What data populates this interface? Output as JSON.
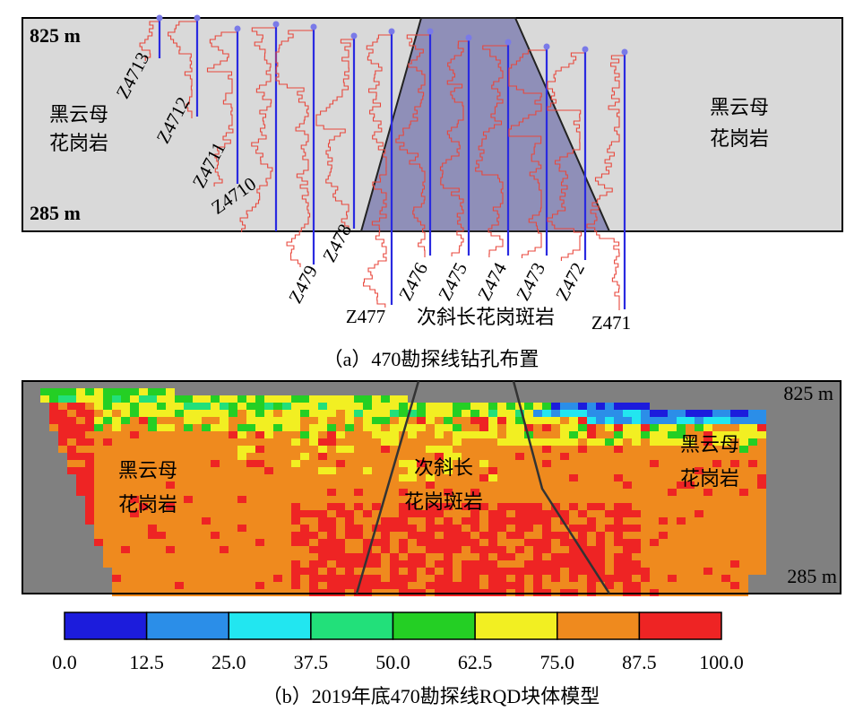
{
  "panel_a": {
    "depth_top": "825 m",
    "depth_bottom": "285 m",
    "host_rock_left": [
      "黑云母",
      "花岗岩"
    ],
    "host_rock_right": [
      "黑云母",
      "花岗岩"
    ],
    "intrusion": "次斜长花岗斑岩",
    "boreholes": [
      "Z4713",
      "Z4712",
      "Z4711",
      "Z4710",
      "Z479",
      "Z478",
      "Z477",
      "Z476",
      "Z475",
      "Z474",
      "Z473",
      "Z472",
      "Z471"
    ],
    "caption": "（a）470勘探线钻孔布置"
  },
  "panel_b": {
    "depth_top": "825 m",
    "depth_bottom": "285 m",
    "host_rock_left": [
      "黑云母",
      "花岗岩"
    ],
    "host_rock_right": [
      "黑云母",
      "花岗岩"
    ],
    "intrusion": [
      "次斜长",
      "花岗斑岩"
    ],
    "colorbar": {
      "ticks": [
        "0.0",
        "12.5",
        "25.0",
        "37.5",
        "50.0",
        "62.5",
        "75.0",
        "87.5",
        "100.0"
      ],
      "colors": [
        "#1c1cdc",
        "#2b8ee8",
        "#22e6f0",
        "#22e07a",
        "#24cf24",
        "#f2ef22",
        "#ef8a1e",
        "#ee2424"
      ]
    },
    "caption": "（b）2019年底470勘探线RQD块体模型"
  }
}
